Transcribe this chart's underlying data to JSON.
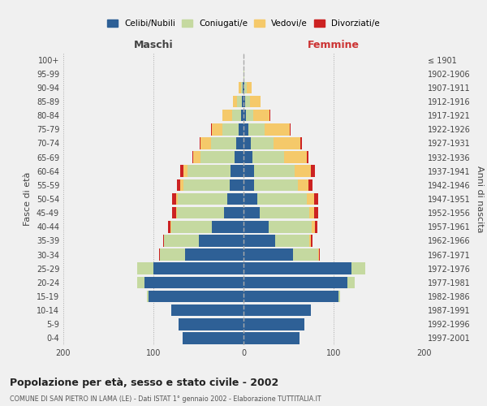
{
  "age_groups": [
    "0-4",
    "5-9",
    "10-14",
    "15-19",
    "20-24",
    "25-29",
    "30-34",
    "35-39",
    "40-44",
    "45-49",
    "50-54",
    "55-59",
    "60-64",
    "65-69",
    "70-74",
    "75-79",
    "80-84",
    "85-89",
    "90-94",
    "95-99",
    "100+"
  ],
  "birth_years": [
    "1997-2001",
    "1992-1996",
    "1987-1991",
    "1982-1986",
    "1977-1981",
    "1972-1976",
    "1967-1971",
    "1962-1966",
    "1957-1961",
    "1952-1956",
    "1947-1951",
    "1942-1946",
    "1937-1941",
    "1932-1936",
    "1927-1931",
    "1922-1926",
    "1917-1921",
    "1912-1916",
    "1907-1911",
    "1902-1906",
    "≤ 1901"
  ],
  "male": {
    "celibi": [
      68,
      72,
      80,
      105,
      110,
      100,
      65,
      50,
      35,
      22,
      18,
      15,
      14,
      10,
      8,
      5,
      3,
      2,
      1,
      0,
      0
    ],
    "coniugati": [
      0,
      0,
      0,
      2,
      8,
      18,
      28,
      38,
      45,
      52,
      55,
      52,
      48,
      38,
      28,
      18,
      10,
      5,
      2,
      0,
      0
    ],
    "vedovi": [
      0,
      0,
      0,
      0,
      0,
      0,
      0,
      0,
      1,
      1,
      2,
      3,
      5,
      8,
      12,
      12,
      10,
      5,
      2,
      0,
      0
    ],
    "divorziati": [
      0,
      0,
      0,
      0,
      0,
      0,
      1,
      1,
      3,
      4,
      4,
      4,
      3,
      1,
      1,
      1,
      0,
      0,
      0,
      0,
      0
    ]
  },
  "female": {
    "nubili": [
      62,
      68,
      75,
      105,
      115,
      120,
      55,
      35,
      28,
      18,
      15,
      12,
      12,
      10,
      8,
      5,
      3,
      2,
      1,
      0,
      0
    ],
    "coniugate": [
      0,
      0,
      0,
      2,
      8,
      15,
      28,
      38,
      48,
      55,
      55,
      48,
      45,
      35,
      25,
      18,
      8,
      5,
      3,
      1,
      0
    ],
    "vedove": [
      0,
      0,
      0,
      0,
      0,
      0,
      1,
      2,
      3,
      5,
      8,
      12,
      18,
      25,
      30,
      28,
      18,
      12,
      5,
      0,
      0
    ],
    "divorziate": [
      0,
      0,
      0,
      0,
      0,
      0,
      1,
      2,
      3,
      5,
      5,
      5,
      4,
      2,
      2,
      1,
      1,
      0,
      0,
      0,
      0
    ]
  },
  "colors": {
    "celibi": "#2e6096",
    "coniugati": "#c5d9a0",
    "vedovi": "#f5c96a",
    "divorziati": "#cc2222"
  },
  "title": "Popolazione per età, sesso e stato civile - 2002",
  "subtitle": "COMUNE DI SAN PIETRO IN LAMA (LE) - Dati ISTAT 1° gennaio 2002 - Elaborazione TUTTITALIA.IT",
  "ylabel_left": "Fasce di età",
  "ylabel_right": "Anni di nascita",
  "xlabel_left": "Maschi",
  "xlabel_right": "Femmine",
  "xlim": 200,
  "legend_labels": [
    "Celibi/Nubili",
    "Coniugati/e",
    "Vedovi/e",
    "Divorziati/e"
  ],
  "background_color": "#f0f0f0"
}
